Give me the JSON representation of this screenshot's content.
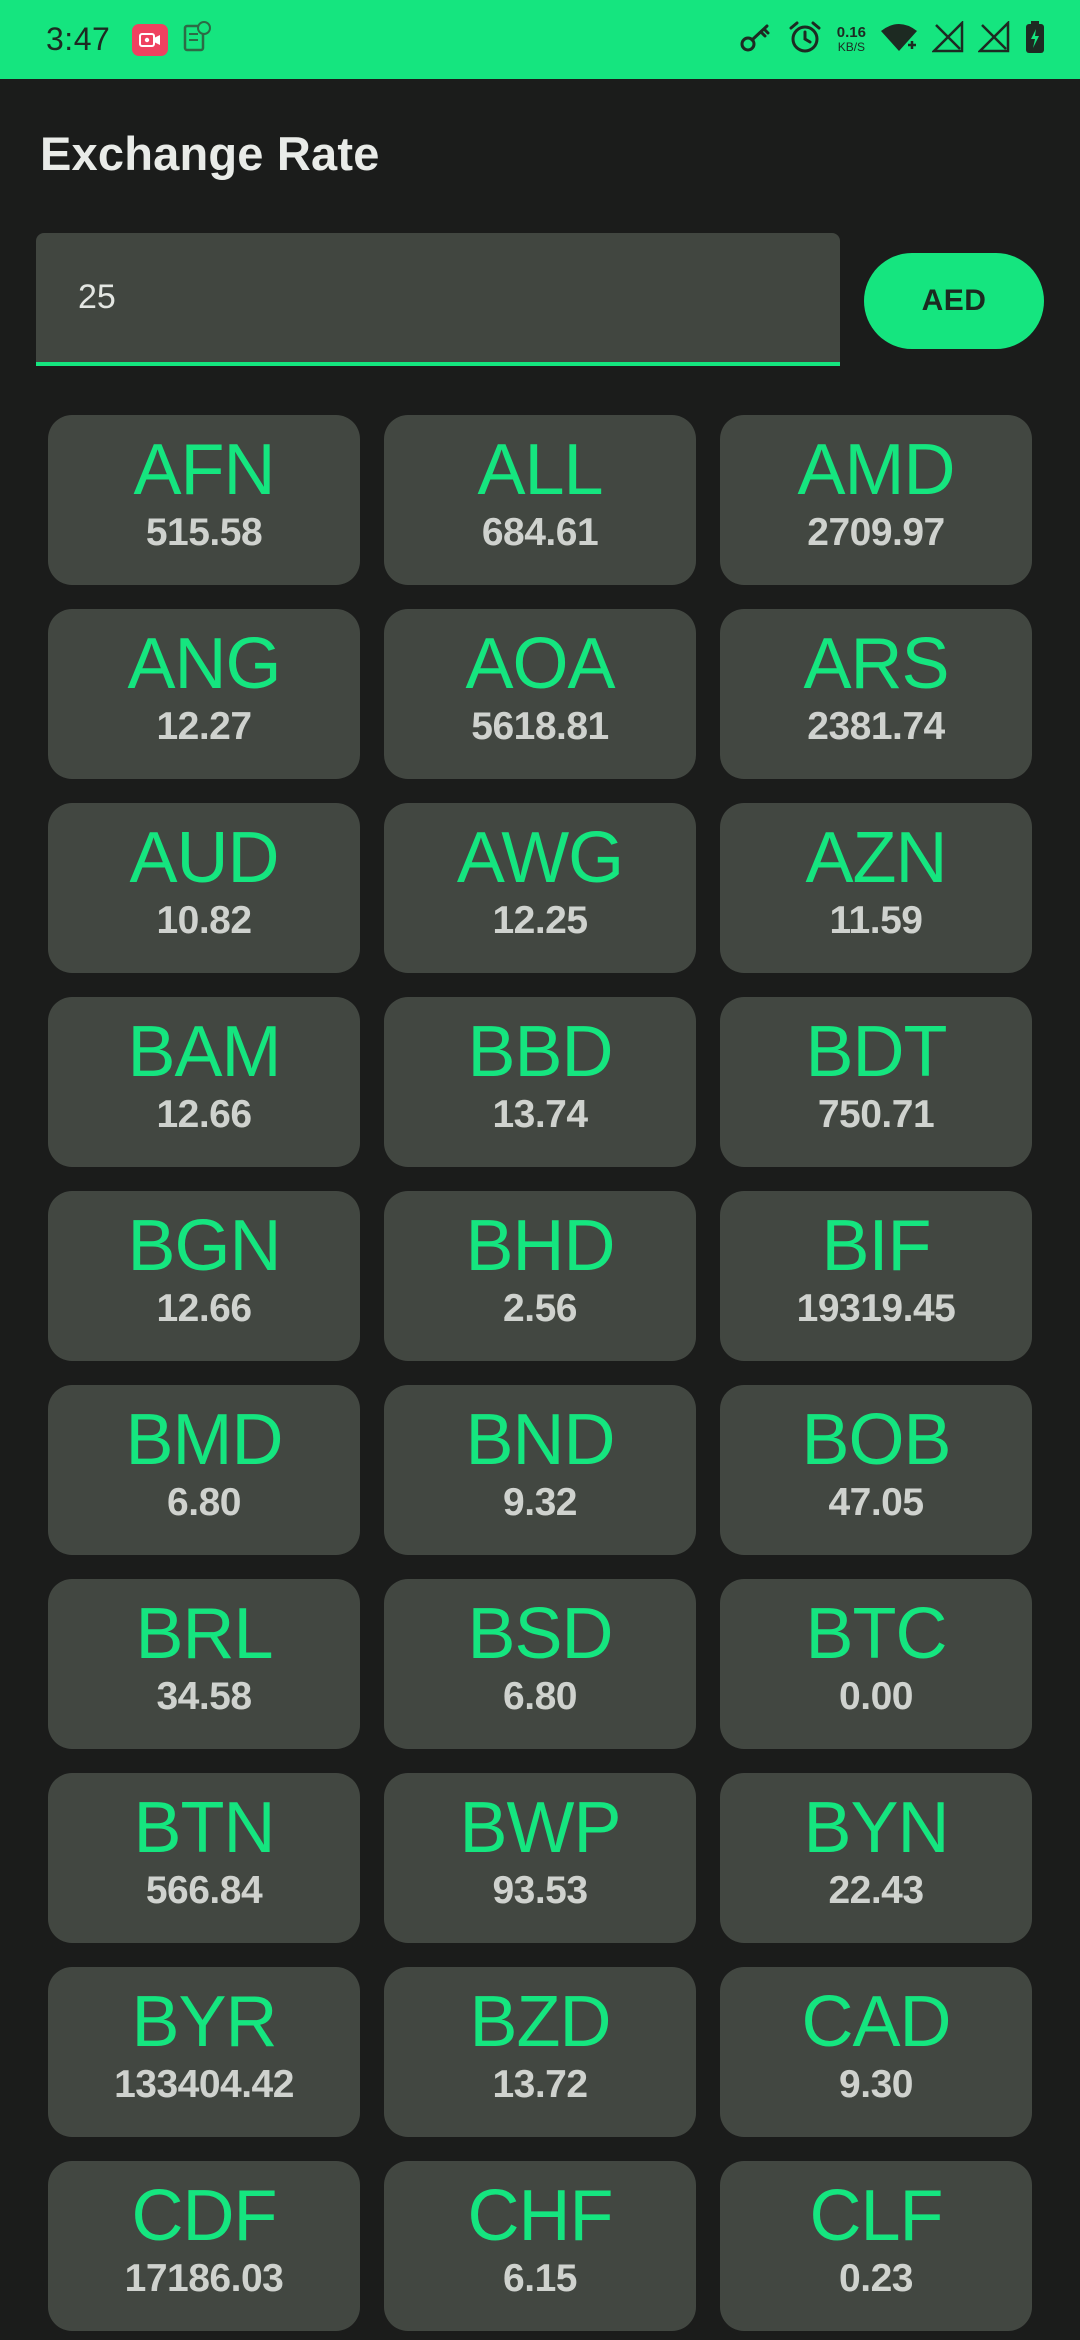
{
  "status_bar": {
    "time": "3:47",
    "net_speed_value": "0.16",
    "net_speed_unit": "KB/S",
    "icons": [
      "screen-record-icon",
      "notification-icon",
      "key-icon",
      "alarm-icon",
      "wifi-icon",
      "signal-icon",
      "signal-icon",
      "battery-icon"
    ]
  },
  "header": {
    "title": "Exchange Rate"
  },
  "amount_input": {
    "value": "25"
  },
  "base_currency": {
    "label": "AED"
  },
  "colors": {
    "accent": "#15e57f",
    "background": "#1b1c1b",
    "card": "#424741"
  },
  "rates": [
    {
      "code": "AFN",
      "value": "515.58"
    },
    {
      "code": "ALL",
      "value": "684.61"
    },
    {
      "code": "AMD",
      "value": "2709.97"
    },
    {
      "code": "ANG",
      "value": "12.27"
    },
    {
      "code": "AOA",
      "value": "5618.81"
    },
    {
      "code": "ARS",
      "value": "2381.74"
    },
    {
      "code": "AUD",
      "value": "10.82"
    },
    {
      "code": "AWG",
      "value": "12.25"
    },
    {
      "code": "AZN",
      "value": "11.59"
    },
    {
      "code": "BAM",
      "value": "12.66"
    },
    {
      "code": "BBD",
      "value": "13.74"
    },
    {
      "code": "BDT",
      "value": "750.71"
    },
    {
      "code": "BGN",
      "value": "12.66"
    },
    {
      "code": "BHD",
      "value": "2.56"
    },
    {
      "code": "BIF",
      "value": "19319.45"
    },
    {
      "code": "BMD",
      "value": "6.80"
    },
    {
      "code": "BND",
      "value": "9.32"
    },
    {
      "code": "BOB",
      "value": "47.05"
    },
    {
      "code": "BRL",
      "value": "34.58"
    },
    {
      "code": "BSD",
      "value": "6.80"
    },
    {
      "code": "BTC",
      "value": "0.00"
    },
    {
      "code": "BTN",
      "value": "566.84"
    },
    {
      "code": "BWP",
      "value": "93.53"
    },
    {
      "code": "BYN",
      "value": "22.43"
    },
    {
      "code": "BYR",
      "value": "133404.42"
    },
    {
      "code": "BZD",
      "value": "13.72"
    },
    {
      "code": "CAD",
      "value": "9.30"
    },
    {
      "code": "CDF",
      "value": "17186.03"
    },
    {
      "code": "CHF",
      "value": "6.15"
    },
    {
      "code": "CLF",
      "value": "0.23"
    }
  ]
}
